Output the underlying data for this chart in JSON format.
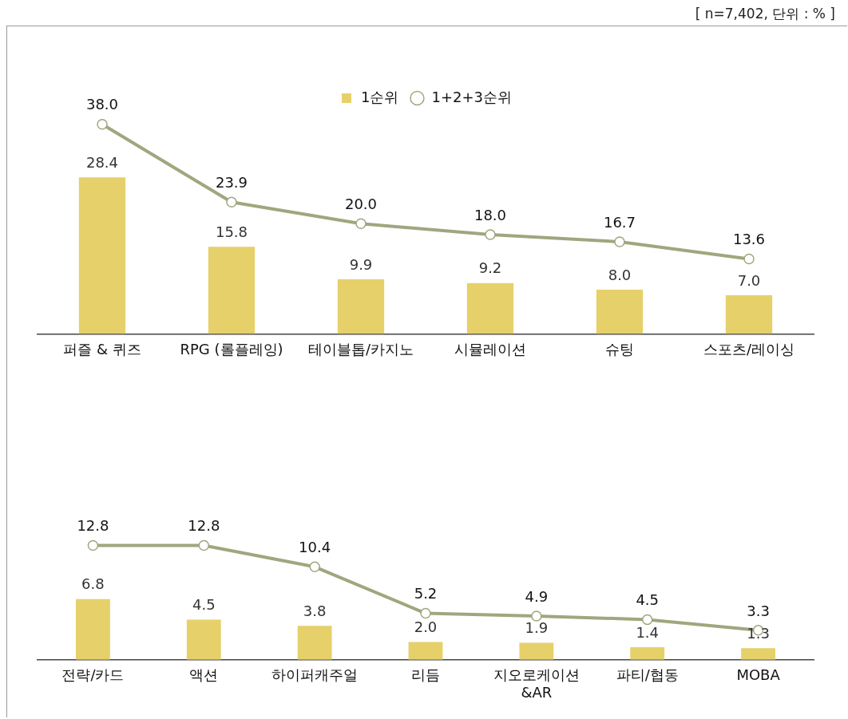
{
  "chart_data": [
    {
      "type": "bar",
      "annotations": [
        "[ n=7,402, 단위 : % ]"
      ],
      "categories": [
        "퍼즐 & 퀴즈",
        "RPG (롤플레잉)",
        "테이블톱/카지노",
        "시뮬레이션",
        "슈팅",
        "스포츠/레이싱"
      ],
      "series": [
        {
          "name": "1순위",
          "color": "#e6d06a",
          "values": [
            28.4,
            15.8,
            9.9,
            9.2,
            8.0,
            7.0
          ],
          "value_labels": [
            "28.4",
            "15.8",
            "9.9",
            "9.2",
            "8.0",
            "7.0"
          ]
        },
        {
          "name": "1+2+3순위",
          "type": "line",
          "color": "#a0a67e",
          "values": [
            38.0,
            23.9,
            20.0,
            18.0,
            16.7,
            13.6
          ],
          "value_labels": [
            "38.0",
            "23.9",
            "20.0",
            "18.0",
            "16.7",
            "13.6"
          ]
        }
      ],
      "legend": "top",
      "marker": "circle",
      "grid": false
    },
    {
      "type": "bar",
      "categories": [
        "전략/카드",
        "액션",
        "하이퍼캐주얼",
        "리듬",
        "지오로케이션\n&AR",
        "파티/협동",
        "MOBA"
      ],
      "series": [
        {
          "color": "#e6d06a",
          "values": [
            6.8,
            4.5,
            3.8,
            2.0,
            1.9,
            1.4,
            1.3
          ],
          "value_labels": [
            "6.8",
            "4.5",
            "3.8",
            "2.0",
            "1.9",
            "1.4",
            "1.3"
          ]
        },
        {
          "type": "line",
          "color": "#a0a67e",
          "values": [
            12.8,
            12.8,
            10.4,
            5.2,
            4.9,
            4.5,
            3.3
          ],
          "value_labels": [
            "12.8",
            "12.8",
            "10.4",
            "5.2",
            "4.9",
            "4.5",
            "3.3"
          ]
        }
      ],
      "marker": "circle",
      "grid": false
    }
  ]
}
